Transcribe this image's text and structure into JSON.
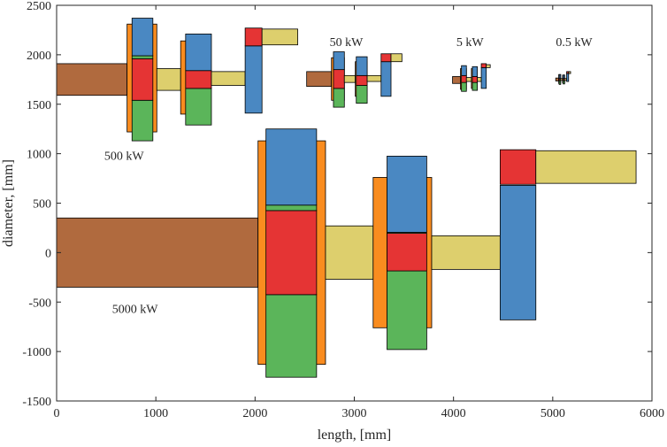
{
  "chart_data": {
    "type": "bar",
    "xlabel": "length, [mm]",
    "ylabel": "diameter, [mm]",
    "xlim": [
      0,
      6000
    ],
    "ylim": [
      -1500,
      2500
    ],
    "xticks": [
      0,
      1000,
      2000,
      3000,
      4000,
      5000,
      6000
    ],
    "yticks": [
      -1500,
      -1000,
      -500,
      0,
      500,
      1000,
      1500,
      2000,
      2500
    ],
    "grid": false,
    "legend": "none",
    "colors": {
      "brown": "#B06A3E",
      "yellow": "#DDCF6D",
      "orange": "#F98C1F",
      "blue": "#4A88C2",
      "red": "#E53434",
      "green": "#5BB55A"
    },
    "annotations": [
      {
        "text": "50 kW",
        "x": 2920,
        "y": 2090
      },
      {
        "text": "5 kW",
        "x": 4165,
        "y": 2090
      },
      {
        "text": "0.5 kW",
        "x": 5215,
        "y": 2090
      },
      {
        "text": "500 kW",
        "x": 680,
        "y": 940
      },
      {
        "text": "5000 kW",
        "x": 790,
        "y": -610
      }
    ],
    "rects": [
      {
        "x0": 0,
        "x1": 2030,
        "y0": -350,
        "y1": 350,
        "color": "brown"
      },
      {
        "x0": 2030,
        "x1": 2710,
        "y0": -1130,
        "y1": 1130,
        "color": "orange"
      },
      {
        "x0": 2110,
        "x1": 2620,
        "y0": -1260,
        "y1": -425,
        "color": "green"
      },
      {
        "x0": 2110,
        "x1": 2620,
        "y0": -425,
        "y1": 425,
        "color": "red"
      },
      {
        "x0": 2110,
        "x1": 2620,
        "y0": 425,
        "y1": 480,
        "color": "green"
      },
      {
        "x0": 2110,
        "x1": 2620,
        "y0": 480,
        "y1": 1250,
        "color": "blue"
      },
      {
        "x0": 2710,
        "x1": 3190,
        "y0": -270,
        "y1": 270,
        "color": "yellow"
      },
      {
        "x0": 3190,
        "x1": 3330,
        "y0": -760,
        "y1": 760,
        "color": "orange"
      },
      {
        "x0": 3330,
        "x1": 3730,
        "y0": -980,
        "y1": -185,
        "color": "green"
      },
      {
        "x0": 3330,
        "x1": 3730,
        "y0": -185,
        "y1": 195,
        "color": "red"
      },
      {
        "x0": 3330,
        "x1": 3730,
        "y0": 195,
        "y1": 205,
        "color": "green"
      },
      {
        "x0": 3330,
        "x1": 3730,
        "y0": 205,
        "y1": 975,
        "color": "blue"
      },
      {
        "x0": 3730,
        "x1": 3780,
        "y0": -760,
        "y1": 760,
        "color": "orange"
      },
      {
        "x0": 3780,
        "x1": 4470,
        "y0": -170,
        "y1": 170,
        "color": "yellow"
      },
      {
        "x0": 4470,
        "x1": 4830,
        "y0": -680,
        "y1": 680,
        "color": "blue"
      },
      {
        "x0": 4470,
        "x1": 4830,
        "y0": 690,
        "y1": 1040,
        "color": "red"
      },
      {
        "x0": 4830,
        "x1": 5840,
        "y0": 700,
        "y1": 1030,
        "color": "yellow"
      },
      {
        "x0": 0,
        "x1": 710,
        "y0": 1590,
        "y1": 1910,
        "color": "brown"
      },
      {
        "x0": 710,
        "x1": 1010,
        "y0": 1220,
        "y1": 2310,
        "color": "orange"
      },
      {
        "x0": 760,
        "x1": 970,
        "y0": 1130,
        "y1": 1540,
        "color": "green"
      },
      {
        "x0": 760,
        "x1": 970,
        "y0": 1540,
        "y1": 1960,
        "color": "red"
      },
      {
        "x0": 760,
        "x1": 970,
        "y0": 1960,
        "y1": 1990,
        "color": "green"
      },
      {
        "x0": 760,
        "x1": 970,
        "y0": 1990,
        "y1": 2370,
        "color": "blue"
      },
      {
        "x0": 1010,
        "x1": 1250,
        "y0": 1640,
        "y1": 1860,
        "color": "yellow"
      },
      {
        "x0": 1250,
        "x1": 1530,
        "y0": 1400,
        "y1": 2140,
        "color": "orange"
      },
      {
        "x0": 1300,
        "x1": 1560,
        "y0": 1290,
        "y1": 1660,
        "color": "green"
      },
      {
        "x0": 1300,
        "x1": 1560,
        "y0": 1660,
        "y1": 1840,
        "color": "red"
      },
      {
        "x0": 1300,
        "x1": 1560,
        "y0": 1840,
        "y1": 2210,
        "color": "blue"
      },
      {
        "x0": 1560,
        "x1": 1900,
        "y0": 1690,
        "y1": 1830,
        "color": "yellow"
      },
      {
        "x0": 1900,
        "x1": 2070,
        "y0": 1410,
        "y1": 2090,
        "color": "blue"
      },
      {
        "x0": 1900,
        "x1": 2070,
        "y0": 2090,
        "y1": 2270,
        "color": "red"
      },
      {
        "x0": 2070,
        "x1": 2430,
        "y0": 2100,
        "y1": 2260,
        "color": "yellow"
      },
      {
        "x0": 2520,
        "x1": 2770,
        "y0": 1680,
        "y1": 1830,
        "color": "brown"
      },
      {
        "x0": 2770,
        "x1": 2900,
        "y0": 1540,
        "y1": 1970,
        "color": "orange"
      },
      {
        "x0": 2790,
        "x1": 2900,
        "y0": 1470,
        "y1": 1660,
        "color": "green"
      },
      {
        "x0": 2790,
        "x1": 2900,
        "y0": 1660,
        "y1": 1850,
        "color": "red"
      },
      {
        "x0": 2790,
        "x1": 2900,
        "y0": 1850,
        "y1": 2030,
        "color": "blue"
      },
      {
        "x0": 2900,
        "x1": 3010,
        "y0": 1720,
        "y1": 1790,
        "color": "yellow"
      },
      {
        "x0": 3010,
        "x1": 3130,
        "y0": 1580,
        "y1": 1930,
        "color": "orange"
      },
      {
        "x0": 3020,
        "x1": 3130,
        "y0": 1510,
        "y1": 1690,
        "color": "green"
      },
      {
        "x0": 3020,
        "x1": 3130,
        "y0": 1690,
        "y1": 1790,
        "color": "red"
      },
      {
        "x0": 3020,
        "x1": 3130,
        "y0": 1790,
        "y1": 1980,
        "color": "blue"
      },
      {
        "x0": 3130,
        "x1": 3270,
        "y0": 1730,
        "y1": 1790,
        "color": "yellow"
      },
      {
        "x0": 3270,
        "x1": 3370,
        "y0": 1580,
        "y1": 1930,
        "color": "blue"
      },
      {
        "x0": 3270,
        "x1": 3370,
        "y0": 1930,
        "y1": 2010,
        "color": "red"
      },
      {
        "x0": 3370,
        "x1": 3480,
        "y0": 1930,
        "y1": 2010,
        "color": "yellow"
      },
      {
        "x0": 3990,
        "x1": 4070,
        "y0": 1710,
        "y1": 1780,
        "color": "brown"
      },
      {
        "x0": 4070,
        "x1": 4130,
        "y0": 1650,
        "y1": 1860,
        "color": "orange"
      },
      {
        "x0": 4080,
        "x1": 4130,
        "y0": 1630,
        "y1": 1720,
        "color": "green"
      },
      {
        "x0": 4080,
        "x1": 4130,
        "y0": 1720,
        "y1": 1790,
        "color": "red"
      },
      {
        "x0": 4080,
        "x1": 4130,
        "y0": 1790,
        "y1": 1890,
        "color": "blue"
      },
      {
        "x0": 4130,
        "x1": 4180,
        "y0": 1730,
        "y1": 1770,
        "color": "yellow"
      },
      {
        "x0": 4180,
        "x1": 4240,
        "y0": 1660,
        "y1": 1860,
        "color": "orange"
      },
      {
        "x0": 4190,
        "x1": 4240,
        "y0": 1640,
        "y1": 1720,
        "color": "green"
      },
      {
        "x0": 4190,
        "x1": 4240,
        "y0": 1720,
        "y1": 1780,
        "color": "red"
      },
      {
        "x0": 4190,
        "x1": 4240,
        "y0": 1780,
        "y1": 1880,
        "color": "blue"
      },
      {
        "x0": 4240,
        "x1": 4280,
        "y0": 1730,
        "y1": 1770,
        "color": "yellow"
      },
      {
        "x0": 4280,
        "x1": 4330,
        "y0": 1660,
        "y1": 1870,
        "color": "blue"
      },
      {
        "x0": 4280,
        "x1": 4330,
        "y0": 1870,
        "y1": 1910,
        "color": "red"
      },
      {
        "x0": 4330,
        "x1": 4370,
        "y0": 1870,
        "y1": 1900,
        "color": "yellow"
      },
      {
        "x0": 5030,
        "x1": 5060,
        "y0": 1735,
        "y1": 1765,
        "color": "brown"
      },
      {
        "x0": 5060,
        "x1": 5080,
        "y0": 1710,
        "y1": 1800,
        "color": "orange"
      },
      {
        "x0": 5065,
        "x1": 5080,
        "y0": 1700,
        "y1": 1740,
        "color": "green"
      },
      {
        "x0": 5065,
        "x1": 5080,
        "y0": 1740,
        "y1": 1760,
        "color": "red"
      },
      {
        "x0": 5065,
        "x1": 5080,
        "y0": 1760,
        "y1": 1800,
        "color": "blue"
      },
      {
        "x0": 5080,
        "x1": 5100,
        "y0": 1740,
        "y1": 1760,
        "color": "yellow"
      },
      {
        "x0": 5100,
        "x1": 5120,
        "y0": 1715,
        "y1": 1795,
        "color": "orange"
      },
      {
        "x0": 5105,
        "x1": 5120,
        "y0": 1705,
        "y1": 1740,
        "color": "green"
      },
      {
        "x0": 5105,
        "x1": 5120,
        "y0": 1740,
        "y1": 1760,
        "color": "red"
      },
      {
        "x0": 5105,
        "x1": 5120,
        "y0": 1760,
        "y1": 1795,
        "color": "blue"
      },
      {
        "x0": 5120,
        "x1": 5140,
        "y0": 1740,
        "y1": 1760,
        "color": "yellow"
      },
      {
        "x0": 5140,
        "x1": 5160,
        "y0": 1730,
        "y1": 1810,
        "color": "blue"
      },
      {
        "x0": 5140,
        "x1": 5160,
        "y0": 1810,
        "y1": 1830,
        "color": "red"
      },
      {
        "x0": 5160,
        "x1": 5180,
        "y0": 1810,
        "y1": 1830,
        "color": "yellow"
      }
    ]
  }
}
